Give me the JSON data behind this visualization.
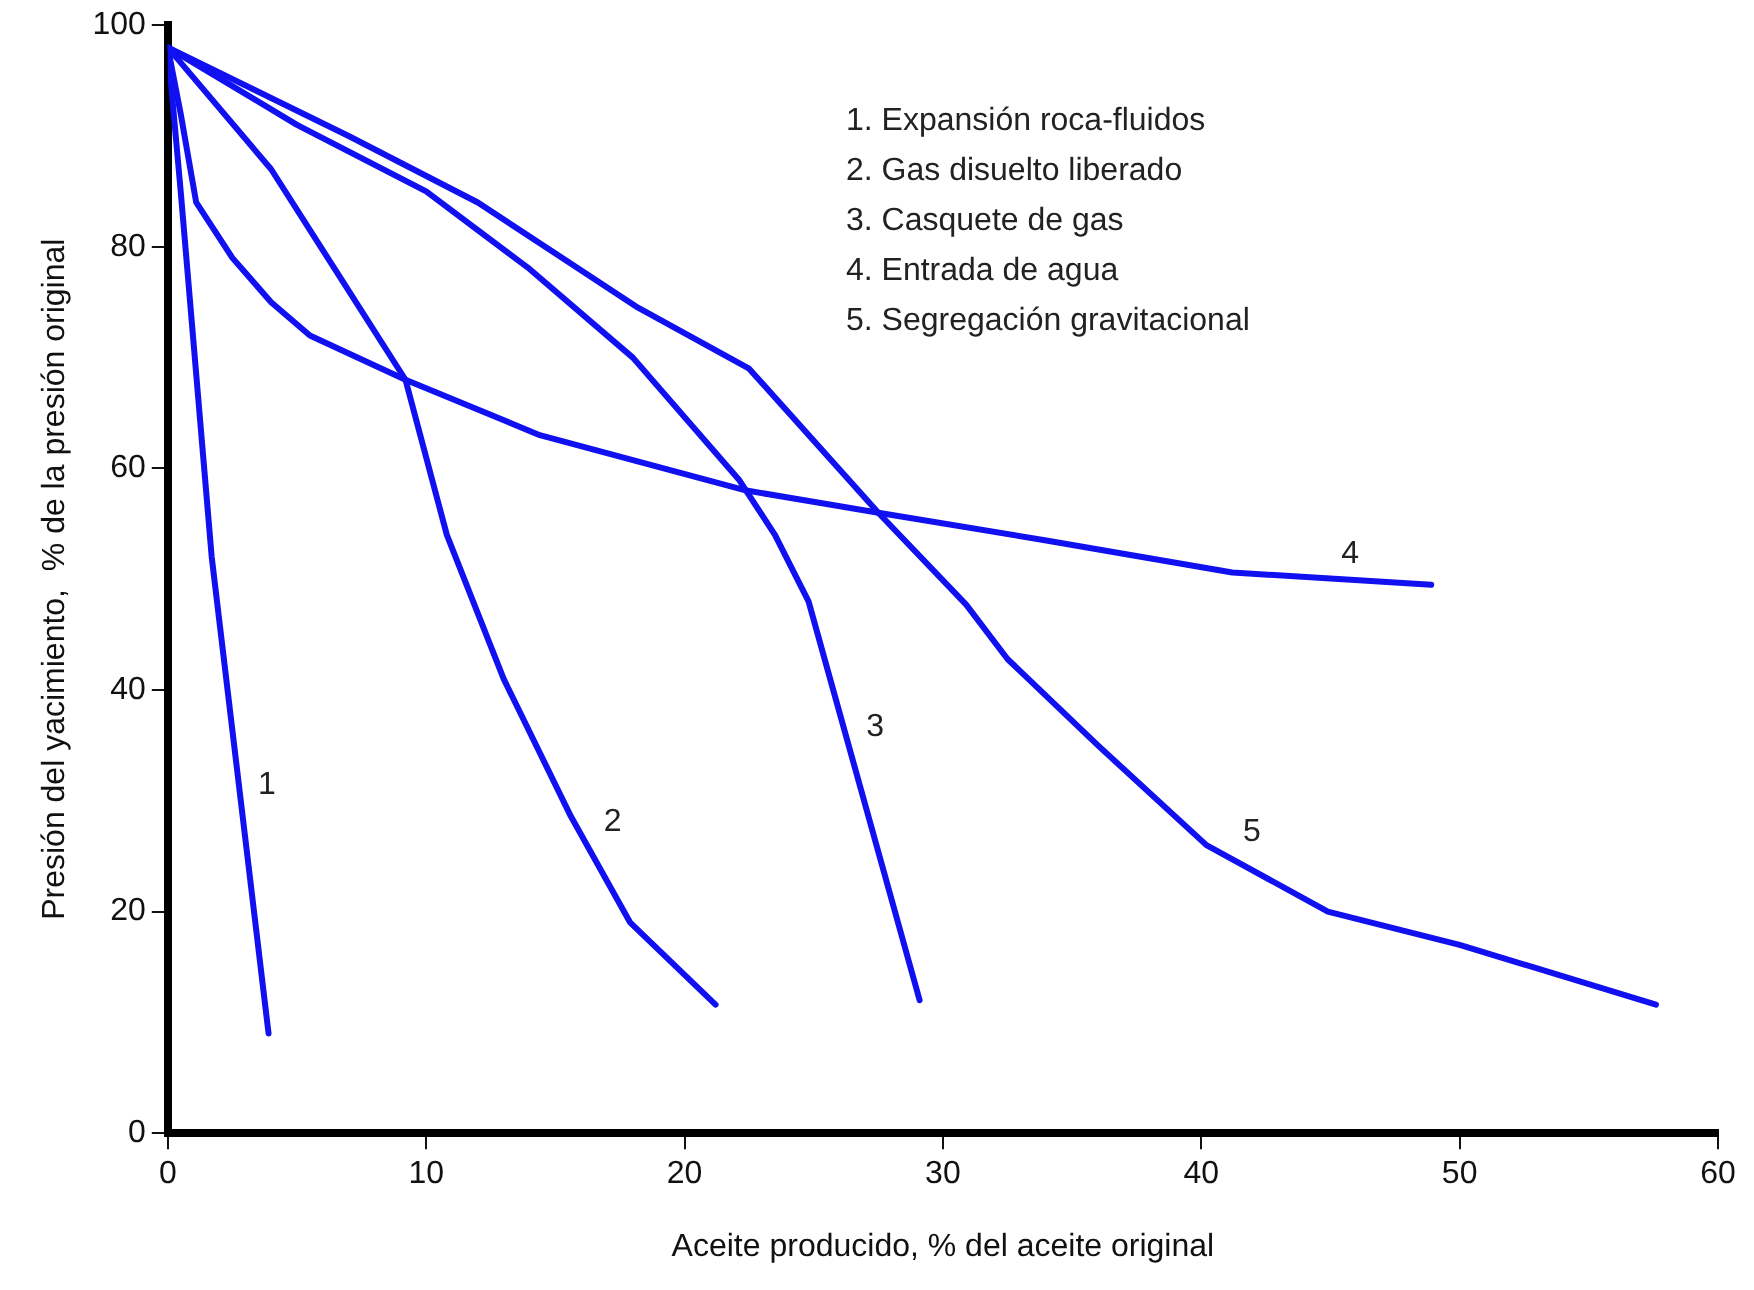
{
  "chart_data": {
    "type": "line",
    "xlabel": "Aceite producido, % del aceite original",
    "ylabel": "Presión del yacimiento,  % de la presión original",
    "xlim": [
      0,
      60
    ],
    "xticks": [
      0,
      10,
      20,
      30,
      40,
      50,
      60
    ],
    "ylim": [
      0,
      100
    ],
    "yticks": [
      0,
      20,
      40,
      60,
      80,
      100
    ],
    "grid": false,
    "legend": false,
    "marker": "none",
    "line_style": "solid",
    "series": [
      {
        "color": "#1010f0",
        "x": [
          0,
          0.5,
          1.7,
          3.9
        ],
        "values": [
          98,
          85,
          52,
          9
        ]
      },
      {
        "color": "#1010f0",
        "x": [
          0,
          4,
          9.2,
          10.8,
          13,
          15.6,
          17.9,
          21.2
        ],
        "values": [
          98,
          87,
          68,
          54,
          41,
          28.6,
          19,
          11.6
        ]
      },
      {
        "color": "#1010f0",
        "x": [
          0,
          5,
          10,
          14,
          18,
          22.1,
          23.5,
          24.8,
          29.1
        ],
        "values": [
          98,
          91,
          85,
          78,
          70,
          59,
          54,
          48,
          12
        ]
      },
      {
        "color": "#1010f0",
        "x": [
          0,
          0.5,
          1.1,
          2.5,
          4,
          5.5,
          9.2,
          14.4,
          22.4,
          27.5,
          34,
          41.2,
          48.9
        ],
        "values": [
          98,
          92,
          84,
          79,
          75,
          72,
          68,
          63,
          58,
          56,
          53.5,
          50.6,
          49.5
        ]
      },
      {
        "color": "#1010f0",
        "x": [
          0,
          7,
          12,
          18.2,
          22.5,
          27.5,
          30.9,
          32.5,
          36,
          40.2,
          44.9,
          50,
          57.6
        ],
        "values": [
          98,
          90,
          84,
          74.5,
          69,
          56,
          47.7,
          42.8,
          35,
          26,
          20,
          17,
          11.6
        ]
      }
    ],
    "annotations": [
      "1. Expansión roca-fluidos",
      "2. Gas disuelto liberado",
      "3. Casquete de gas",
      "4. Entrada de agua",
      "5. Segregación gravitacional",
      {
        "text": "1",
        "x": 2.87,
        "y": 29.2
      },
      {
        "text": "2",
        "x": 16.25,
        "y": 25.9
      },
      {
        "text": "3",
        "x": 26.41,
        "y": 34.5
      },
      {
        "text": "4",
        "x": 44.8,
        "y": 50.1
      },
      {
        "text": "5",
        "x": 41,
        "y": 25
      }
    ]
  }
}
